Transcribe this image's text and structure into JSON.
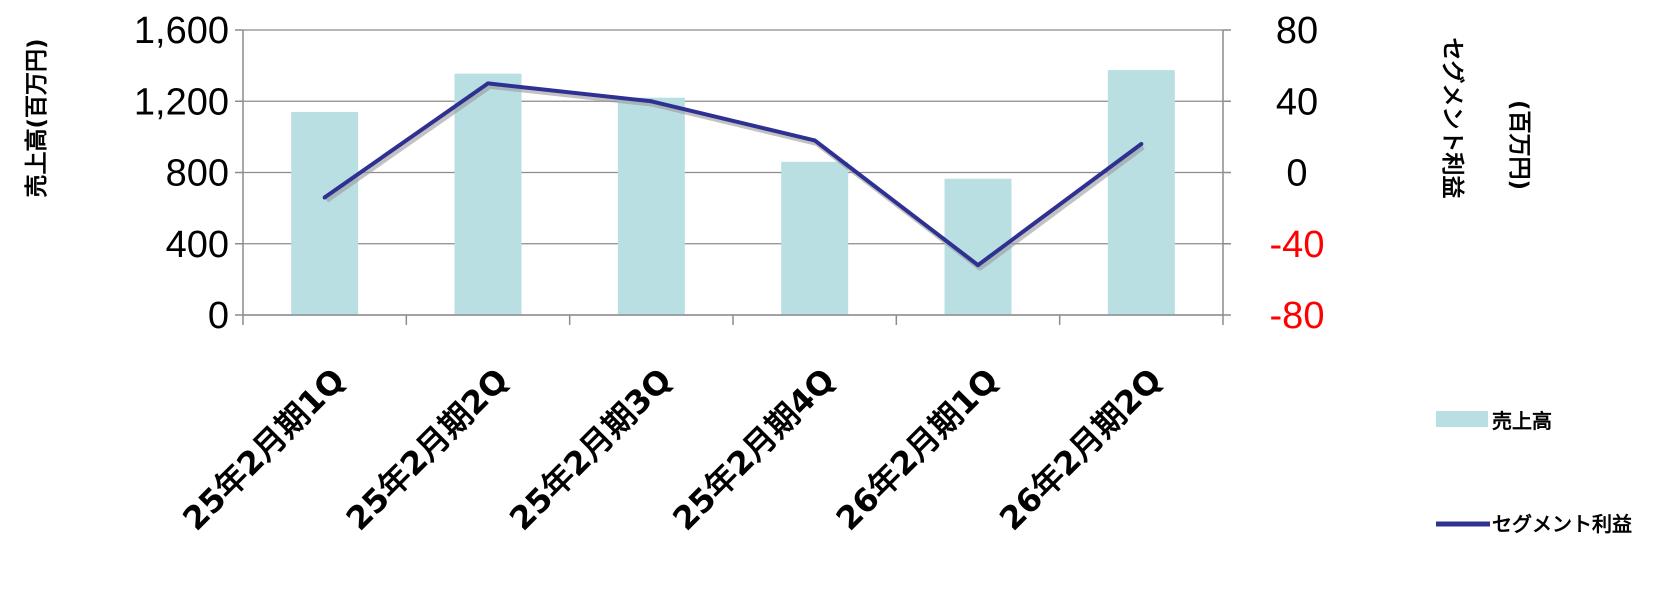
{
  "chart_data": {
    "type": "bar+line",
    "categories": [
      "25年2月期1Q",
      "25年2月期2Q",
      "25年2月期3Q",
      "25年2月期4Q",
      "26年2月期1Q",
      "26年2月期2Q"
    ],
    "series": [
      {
        "name": "売上高",
        "type": "bar",
        "axis": "left",
        "values": [
          1140,
          1355,
          1220,
          860,
          765,
          1375
        ],
        "color": "#b9dfe3"
      },
      {
        "name": "セグメント利益",
        "type": "line",
        "axis": "right",
        "values": [
          -14,
          50,
          40,
          18,
          -52,
          16
        ],
        "color": "#2e3192"
      }
    ],
    "y_left": {
      "label": "売上高(百万円)",
      "min": 0,
      "max": 1600,
      "ticks": [
        "0",
        "400",
        "800",
        "1,200",
        "1,600"
      ]
    },
    "y_right": {
      "label_line1": "セグメント利益",
      "label_line2": "(百万円)",
      "min": -80,
      "max": 80,
      "ticks": [
        "-80",
        "-40",
        "0",
        "40",
        "80"
      ],
      "negative_color": "#ff0000"
    },
    "grid": true,
    "legend_position": "right"
  }
}
